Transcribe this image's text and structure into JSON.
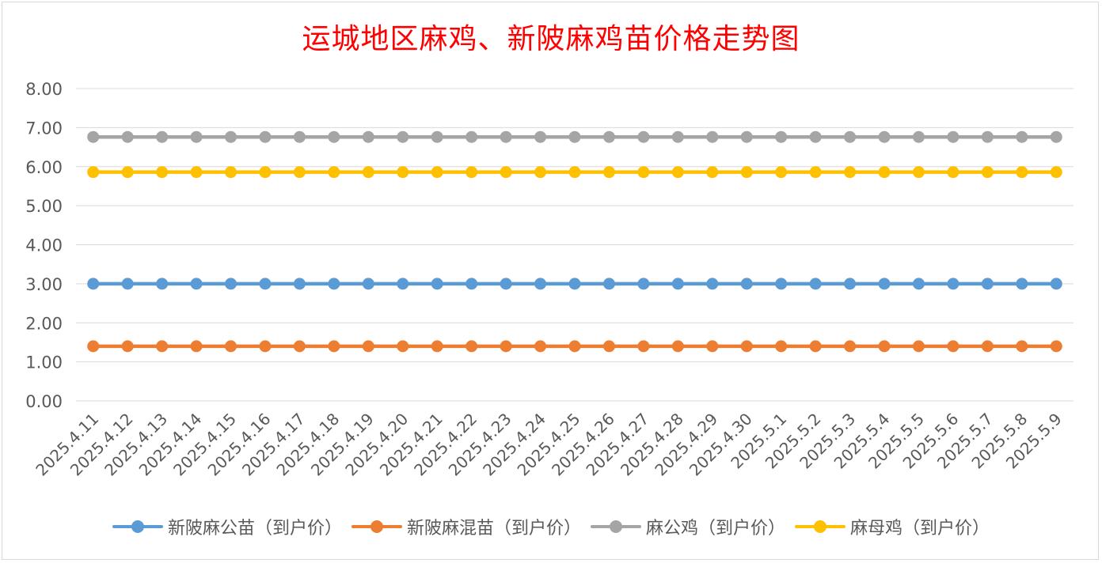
{
  "chart_data": {
    "type": "line",
    "title": "运城地区麻鸡、新陂麻鸡苗价格走势图",
    "categories": [
      "2025.4.11",
      "2025.4.12",
      "2025.4.13",
      "2025.4.14",
      "2025.4.15",
      "2025.4.16",
      "2025.4.17",
      "2025.4.18",
      "2025.4.19",
      "2025.4.20",
      "2025.4.21",
      "2025.4.22",
      "2025.4.23",
      "2025.4.24",
      "2025.4.25",
      "2025.4.26",
      "2025.4.27",
      "2025.4.28",
      "2025.4.29",
      "2025.4.30",
      "2025.5.1",
      "2025.5.2",
      "2025.5.3",
      "2025.5.4",
      "2025.5.5",
      "2025.5.6",
      "2025.5.7",
      "2025.5.8",
      "2025.5.9"
    ],
    "ylim": [
      0,
      8
    ],
    "yticks": [
      "0.00",
      "1.00",
      "2.00",
      "3.00",
      "4.00",
      "5.00",
      "6.00",
      "7.00",
      "8.00"
    ],
    "grid": true,
    "legend_position": "bottom",
    "series": [
      {
        "name": "新陂麻公苗（到户价）",
        "color": "#5b9bd5",
        "values": [
          3.0,
          3.0,
          3.0,
          3.0,
          3.0,
          3.0,
          3.0,
          3.0,
          3.0,
          3.0,
          3.0,
          3.0,
          3.0,
          3.0,
          3.0,
          3.0,
          3.0,
          3.0,
          3.0,
          3.0,
          3.0,
          3.0,
          3.0,
          3.0,
          3.0,
          3.0,
          3.0,
          3.0,
          3.0
        ]
      },
      {
        "name": "新陂麻混苗（到户价）",
        "color": "#ed7d31",
        "values": [
          1.4,
          1.4,
          1.4,
          1.4,
          1.4,
          1.4,
          1.4,
          1.4,
          1.4,
          1.4,
          1.4,
          1.4,
          1.4,
          1.4,
          1.4,
          1.4,
          1.4,
          1.4,
          1.4,
          1.4,
          1.4,
          1.4,
          1.4,
          1.4,
          1.4,
          1.4,
          1.4,
          1.4,
          1.4
        ]
      },
      {
        "name": "麻公鸡（到户价）",
        "color": "#a5a5a5",
        "values": [
          6.76,
          6.76,
          6.76,
          6.76,
          6.76,
          6.76,
          6.76,
          6.76,
          6.76,
          6.76,
          6.76,
          6.76,
          6.76,
          6.76,
          6.76,
          6.76,
          6.76,
          6.76,
          6.76,
          6.76,
          6.76,
          6.76,
          6.76,
          6.76,
          6.76,
          6.76,
          6.76,
          6.76,
          6.76
        ]
      },
      {
        "name": "麻母鸡（到户价）",
        "color": "#ffc000",
        "values": [
          5.86,
          5.86,
          5.86,
          5.86,
          5.86,
          5.86,
          5.86,
          5.86,
          5.86,
          5.86,
          5.86,
          5.86,
          5.86,
          5.86,
          5.86,
          5.86,
          5.86,
          5.86,
          5.86,
          5.86,
          5.86,
          5.86,
          5.86,
          5.86,
          5.86,
          5.86,
          5.86,
          5.86,
          5.86
        ]
      }
    ]
  }
}
